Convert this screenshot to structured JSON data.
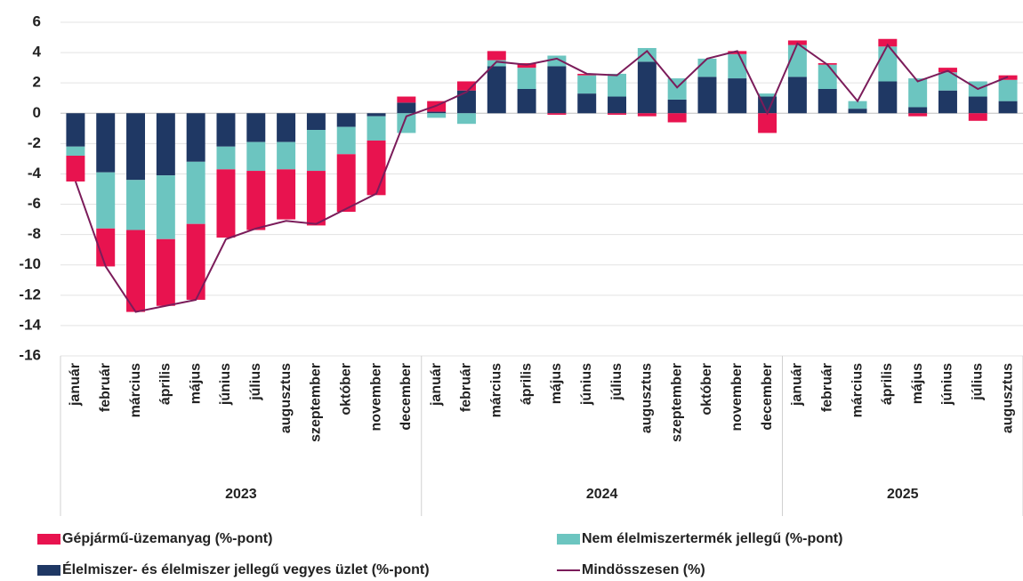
{
  "chart_data": {
    "type": "bar",
    "groups": [
      {
        "label": "2023",
        "categories": [
          "január",
          "február",
          "március",
          "április",
          "május",
          "június",
          "július",
          "augusztus",
          "szeptember",
          "október",
          "november",
          "december"
        ]
      },
      {
        "label": "2024",
        "categories": [
          "január",
          "február",
          "március",
          "április",
          "május",
          "június",
          "július",
          "augusztus",
          "szeptember",
          "október",
          "november",
          "december"
        ]
      },
      {
        "label": "2025",
        "categories": [
          "január",
          "február",
          "március",
          "április",
          "május",
          "június",
          "július",
          "augusztus"
        ]
      }
    ],
    "series": [
      {
        "name": "Gépjármű-üzemanyag (%-pont)",
        "type": "bar",
        "color": "#e8134f",
        "values": [
          -1.7,
          -2.5,
          -5.4,
          -4.4,
          -5.0,
          -4.5,
          -3.9,
          -3.3,
          -3.6,
          -3.8,
          -3.6,
          0.4,
          0.7,
          0.6,
          0.6,
          0.3,
          -0.1,
          0.1,
          -0.1,
          -0.2,
          -0.6,
          0,
          0.2,
          -1.3,
          0.3,
          0.1,
          0,
          0.5,
          -0.2,
          0.3,
          -0.5,
          0.3
        ]
      },
      {
        "name": "Nem élelmiszertermék jellegű (%-pont)",
        "type": "bar",
        "color": "#6cc5c0",
        "values": [
          -0.6,
          -3.7,
          -3.3,
          -4.2,
          -4.1,
          -1.5,
          -1.9,
          -1.8,
          -2.7,
          -1.8,
          -1.6,
          -1.3,
          -0.3,
          -0.7,
          0.4,
          1.4,
          0.7,
          1.2,
          1.5,
          0.9,
          1.4,
          1.2,
          1.6,
          0.2,
          2.1,
          1.6,
          0.5,
          2.3,
          1.9,
          1.2,
          1.0,
          1.4
        ]
      },
      {
        "name": "Élelmiszer- és élelmiszer jellegű vegyes üzlet (%-pont)",
        "type": "bar",
        "color": "#1f3864",
        "values": [
          -2.2,
          -3.9,
          -4.4,
          -4.1,
          -3.2,
          -2.2,
          -1.9,
          -1.9,
          -1.1,
          -0.9,
          -0.2,
          0.7,
          0.1,
          1.5,
          3.1,
          1.6,
          3.1,
          1.3,
          1.1,
          3.4,
          0.9,
          2.4,
          2.3,
          1.1,
          2.4,
          1.6,
          0.3,
          2.1,
          0.4,
          1.5,
          1.1,
          0.8
        ]
      },
      {
        "name": "Mindösszesen (%)",
        "type": "line",
        "color": "#7b1c5a",
        "values": [
          -4.5,
          -10.1,
          -13.1,
          -12.7,
          -12.3,
          -8.3,
          -7.6,
          -7.1,
          -7.3,
          -6.3,
          -5.3,
          -0.2,
          0.5,
          1.4,
          3.4,
          3.2,
          3.6,
          2.6,
          2.5,
          4.1,
          1.7,
          3.6,
          4.1,
          0.0,
          4.6,
          3.2,
          0.8,
          4.5,
          2.1,
          2.8,
          1.6,
          2.4
        ]
      }
    ],
    "ylim": [
      -16,
      6
    ],
    "yticks": [
      -16,
      -14,
      -12,
      -10,
      -8,
      -6,
      -4,
      -2,
      0,
      2,
      4,
      6
    ],
    "grid": true
  }
}
